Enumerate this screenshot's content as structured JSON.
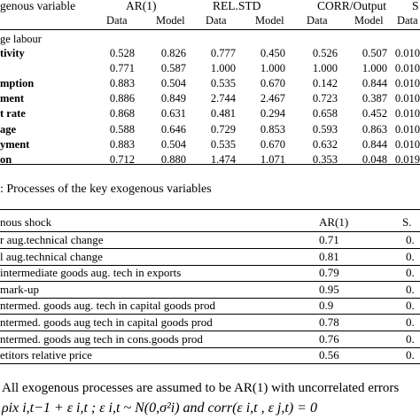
{
  "table1": {
    "col_var_header": "genous variable",
    "group_headers": [
      "AR(1)",
      "REL.STD",
      "CORR/Output",
      "S"
    ],
    "sub_headers": [
      "Data",
      "Model",
      "Data",
      "Model",
      "Data",
      "Model",
      "Data"
    ],
    "section_label": "ge labour",
    "rows": [
      {
        "label": "tivity",
        "values": [
          "0.528",
          "0.826",
          "0.777",
          "0.450",
          "0.526",
          "0.507",
          "0.010"
        ]
      },
      {
        "label": "",
        "values": [
          "0.771",
          "0.587",
          "1.000",
          "1.000",
          "1.000",
          "1.000",
          "0.010"
        ]
      },
      {
        "label": "mption",
        "values": [
          "0.883",
          "0.504",
          "0.535",
          "0.670",
          "0.142",
          "0.844",
          "0.010"
        ]
      },
      {
        "label": "ment",
        "values": [
          "0.886",
          "0.849",
          "2.744",
          "2.467",
          "0.723",
          "0.387",
          "0.010"
        ]
      },
      {
        "label": "t rate",
        "values": [
          "0.868",
          "0.631",
          "0.481",
          "0.294",
          "0.658",
          "0.452",
          "0.010"
        ]
      },
      {
        "label": "age",
        "values": [
          "0.588",
          "0.646",
          "0.729",
          "0.853",
          "0.593",
          "0.863",
          "0.010"
        ]
      },
      {
        "label": "yment",
        "values": [
          "0.883",
          "0.504",
          "0.535",
          "0.670",
          "0.632",
          "0.844",
          "0.010"
        ]
      },
      {
        "label": "on",
        "values": [
          "0.712",
          "0.880",
          "1.474",
          "1.071",
          "0.353",
          "0.048",
          "0.019"
        ]
      }
    ]
  },
  "table2": {
    "caption": ": Processes of the key exogenous variables",
    "col_shock_header": "nous shock",
    "col_ar_header": "AR(1)",
    "col_sd_header": "S.",
    "rows": [
      {
        "label": "r aug.technical change",
        "ar": "0.71",
        "sd": "0."
      },
      {
        "label": "l aug.technical change",
        "ar": "0.81",
        "sd": "0."
      },
      {
        "label": "intermediate goods aug. tech in exports",
        "ar": "0.79",
        "sd": "0."
      },
      {
        "label": "mark-up",
        "ar": "0.95",
        "sd": "0."
      },
      {
        "label": "ntermed. goods aug. tech in capital goods prod",
        "ar": "0.9",
        "sd": "0."
      },
      {
        "label": "ntermed. goods aug tech in capital goods prod",
        "ar": "0.78",
        "sd": "0."
      },
      {
        "label": "ntermed. goods aug tech in cons.goods prod",
        "ar": "0.76",
        "sd": "0."
      },
      {
        "label": "etitors relative price",
        "ar": "0.56",
        "sd": "0."
      }
    ]
  },
  "note": "All exogenous processes are assumed to be AR(1) with uncorrelated errors",
  "equation": "ρix i,t−1 + ε i,t ; ε i,t ~ N(0,σ²i) and corr(ε i,t , ε j,t) = 0"
}
